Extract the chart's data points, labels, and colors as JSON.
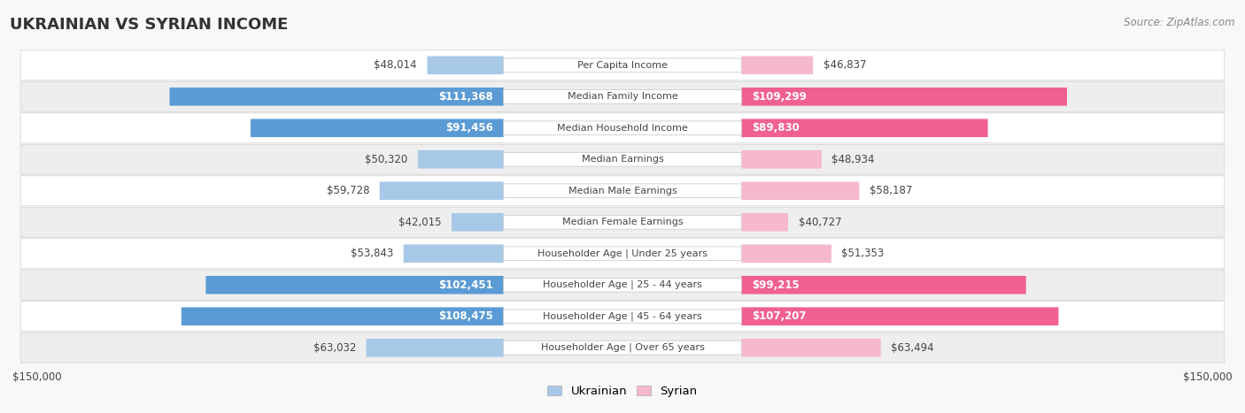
{
  "title": "UKRAINIAN VS SYRIAN INCOME",
  "source": "Source: ZipAtlas.com",
  "categories": [
    "Per Capita Income",
    "Median Family Income",
    "Median Household Income",
    "Median Earnings",
    "Median Male Earnings",
    "Median Female Earnings",
    "Householder Age | Under 25 years",
    "Householder Age | 25 - 44 years",
    "Householder Age | 45 - 64 years",
    "Householder Age | Over 65 years"
  ],
  "ukrainian_values": [
    48014,
    111368,
    91456,
    50320,
    59728,
    42015,
    53843,
    102451,
    108475,
    63032
  ],
  "syrian_values": [
    46837,
    109299,
    89830,
    48934,
    58187,
    40727,
    51353,
    99215,
    107207,
    63494
  ],
  "ukrainian_labels": [
    "$48,014",
    "$111,368",
    "$91,456",
    "$50,320",
    "$59,728",
    "$42,015",
    "$53,843",
    "$102,451",
    "$108,475",
    "$63,032"
  ],
  "syrian_labels": [
    "$46,837",
    "$109,299",
    "$89,830",
    "$48,934",
    "$58,187",
    "$40,727",
    "$51,353",
    "$99,215",
    "$107,207",
    "$63,494"
  ],
  "ukrainian_color_light": "#a8c8e8",
  "ukrainian_color_dark": "#5b9bd5",
  "syrian_color_light": "#f5b8cc",
  "syrian_color_dark": "#f06090",
  "large_threshold": 70000,
  "max_value": 150000,
  "background_color": "#f8f8f8",
  "row_bg_even": "#ffffff",
  "row_bg_odd": "#eeeeee",
  "legend_ukrainian": "Ukrainian",
  "legend_syrian": "Syrian",
  "label_font_size": 8.5,
  "cat_font_size": 8.0,
  "title_font_size": 13,
  "source_font_size": 8.5
}
